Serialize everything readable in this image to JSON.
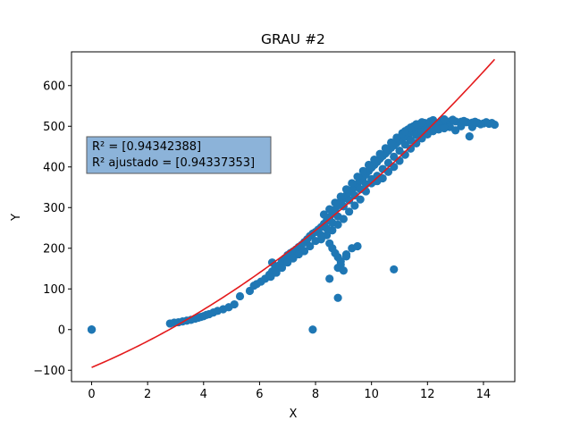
{
  "chart_data": {
    "type": "scatter",
    "title": "GRAU #2",
    "xlabel": "X",
    "ylabel": "Y",
    "xlim": [
      -0.72,
      15.12
    ],
    "ylim": [
      -128,
      683
    ],
    "x_ticks": [
      0,
      2,
      4,
      6,
      8,
      10,
      12,
      14
    ],
    "y_ticks": [
      -100,
      0,
      100,
      200,
      300,
      400,
      500,
      600
    ],
    "grid": false,
    "annotation": {
      "lines": [
        "R² = [0.94342388]",
        "R² ajustado = [0.94337353]"
      ]
    },
    "colors": {
      "scatter": "#1f77b4",
      "fit_line": "#e41a1c",
      "annotation_bg": "#8cb3d9"
    },
    "series": [
      {
        "type": "scatter",
        "points": [
          [
            0,
            0
          ],
          [
            0,
            0
          ],
          [
            0,
            0
          ],
          [
            2.8,
            15
          ],
          [
            2.95,
            17
          ],
          [
            3.1,
            18
          ],
          [
            3.25,
            20
          ],
          [
            3.4,
            22
          ],
          [
            3.55,
            24
          ],
          [
            3.7,
            27
          ],
          [
            3.8,
            29
          ],
          [
            3.9,
            31
          ],
          [
            4.0,
            33
          ],
          [
            4.1,
            36
          ],
          [
            4.2,
            38
          ],
          [
            4.35,
            42
          ],
          [
            4.5,
            46
          ],
          [
            4.7,
            50
          ],
          [
            4.9,
            55
          ],
          [
            5.1,
            62
          ],
          [
            5.3,
            82
          ],
          [
            5.65,
            95
          ],
          [
            5.8,
            108
          ],
          [
            5.9,
            112
          ],
          [
            6.05,
            118
          ],
          [
            6.2,
            125
          ],
          [
            6.35,
            135
          ],
          [
            6.45,
            143
          ],
          [
            6.45,
            165
          ],
          [
            6.55,
            150
          ],
          [
            6.7,
            158
          ],
          [
            6.8,
            168
          ],
          [
            6.9,
            175
          ],
          [
            7.0,
            183
          ],
          [
            7.1,
            188
          ],
          [
            7.2,
            192
          ],
          [
            7.3,
            197
          ],
          [
            7.4,
            203
          ],
          [
            7.5,
            208
          ],
          [
            7.6,
            215
          ],
          [
            7.7,
            222
          ],
          [
            7.8,
            230
          ],
          [
            7.9,
            236
          ],
          [
            8.0,
            240
          ],
          [
            8.1,
            246
          ],
          [
            8.2,
            252
          ],
          [
            8.3,
            260
          ],
          [
            8.4,
            268
          ],
          [
            8.5,
            276
          ],
          [
            8.6,
            285
          ],
          [
            8.7,
            295
          ],
          [
            8.8,
            305
          ],
          [
            8.9,
            315
          ],
          [
            9.0,
            322
          ],
          [
            9.1,
            330
          ],
          [
            9.2,
            337
          ],
          [
            9.3,
            343
          ],
          [
            9.4,
            350
          ],
          [
            9.5,
            358
          ],
          [
            9.6,
            366
          ],
          [
            9.7,
            374
          ],
          [
            9.8,
            382
          ],
          [
            9.9,
            390
          ],
          [
            10.0,
            398
          ],
          [
            10.1,
            405
          ],
          [
            10.2,
            412
          ],
          [
            10.3,
            420
          ],
          [
            10.4,
            427
          ],
          [
            10.5,
            433
          ],
          [
            10.6,
            440
          ],
          [
            10.7,
            447
          ],
          [
            10.8,
            453
          ],
          [
            10.9,
            459
          ],
          [
            11.0,
            465
          ],
          [
            11.1,
            470
          ],
          [
            11.2,
            475
          ],
          [
            11.3,
            480
          ],
          [
            11.4,
            484
          ],
          [
            11.5,
            488
          ],
          [
            11.6,
            491
          ],
          [
            11.7,
            494
          ],
          [
            11.8,
            497
          ],
          [
            11.9,
            500
          ],
          [
            12.0,
            502
          ],
          [
            12.2,
            505
          ],
          [
            12.4,
            508
          ],
          [
            12.6,
            510
          ],
          [
            12.8,
            512
          ],
          [
            13.0,
            512
          ],
          [
            13.2,
            511
          ],
          [
            13.4,
            510
          ],
          [
            13.6,
            509
          ],
          [
            13.8,
            508
          ],
          [
            14.0,
            507
          ],
          [
            14.2,
            506
          ],
          [
            14.4,
            504
          ],
          [
            8.2,
            222
          ],
          [
            8.4,
            232
          ],
          [
            8.6,
            244
          ],
          [
            8.8,
            258
          ],
          [
            9.0,
            272
          ],
          [
            9.2,
            290
          ],
          [
            9.4,
            305
          ],
          [
            9.6,
            320
          ],
          [
            9.8,
            340
          ],
          [
            10.0,
            360
          ],
          [
            10.2,
            378
          ],
          [
            10.4,
            395
          ],
          [
            10.6,
            410
          ],
          [
            10.8,
            425
          ],
          [
            11.0,
            440
          ],
          [
            11.2,
            455
          ],
          [
            11.4,
            465
          ],
          [
            11.6,
            478
          ],
          [
            11.8,
            486
          ],
          [
            12.0,
            490
          ],
          [
            12.4,
            495
          ],
          [
            12.8,
            498
          ],
          [
            13.2,
            500
          ],
          [
            13.6,
            498
          ],
          [
            8.3,
            283
          ],
          [
            8.5,
            296
          ],
          [
            8.7,
            312
          ],
          [
            8.9,
            327
          ],
          [
            9.1,
            345
          ],
          [
            9.3,
            360
          ],
          [
            9.5,
            376
          ],
          [
            9.7,
            390
          ],
          [
            9.9,
            405
          ],
          [
            10.1,
            418
          ],
          [
            10.3,
            432
          ],
          [
            10.5,
            446
          ],
          [
            10.7,
            460
          ],
          [
            10.9,
            472
          ],
          [
            11.1,
            483
          ],
          [
            11.3,
            492
          ],
          [
            11.5,
            500
          ],
          [
            11.7,
            505
          ],
          [
            11.9,
            508
          ],
          [
            12.1,
            512
          ],
          [
            12.5,
            514
          ],
          [
            12.9,
            516
          ],
          [
            13.3,
            513
          ],
          [
            13.7,
            511
          ],
          [
            14.1,
            510
          ],
          [
            7.6,
            193
          ],
          [
            7.8,
            205
          ],
          [
            8.0,
            218
          ],
          [
            8.2,
            232
          ],
          [
            8.4,
            249
          ],
          [
            8.6,
            263
          ],
          [
            8.8,
            278
          ],
          [
            7.4,
            185
          ],
          [
            7.2,
            175
          ],
          [
            7.0,
            165
          ],
          [
            6.8,
            152
          ],
          [
            6.6,
            140
          ],
          [
            6.4,
            130
          ],
          [
            8.5,
            212
          ],
          [
            8.6,
            200
          ],
          [
            8.7,
            188
          ],
          [
            8.8,
            178
          ],
          [
            8.9,
            168
          ],
          [
            8.8,
            152
          ],
          [
            9.1,
            185
          ],
          [
            9.3,
            200
          ],
          [
            9.5,
            205
          ],
          [
            9.1,
            180
          ],
          [
            8.9,
            160
          ],
          [
            8.5,
            125
          ],
          [
            8.8,
            78
          ],
          [
            9.0,
            145
          ],
          [
            7.9,
            0
          ],
          [
            10.8,
            148
          ],
          [
            10.2,
            365
          ],
          [
            10.4,
            372
          ],
          [
            10.6,
            388
          ],
          [
            10.8,
            400
          ],
          [
            11.0,
            415
          ],
          [
            11.2,
            430
          ],
          [
            11.4,
            445
          ],
          [
            11.6,
            458
          ],
          [
            11.8,
            470
          ],
          [
            12.0,
            480
          ],
          [
            12.2,
            488
          ],
          [
            12.4,
            492
          ],
          [
            12.6,
            495
          ],
          [
            13.0,
            490
          ],
          [
            13.5,
            475
          ],
          [
            13.9,
            505
          ],
          [
            14.3,
            508
          ],
          [
            9.4,
            330
          ],
          [
            9.6,
            345
          ],
          [
            9.8,
            358
          ],
          [
            10.0,
            370
          ],
          [
            9.2,
            318
          ],
          [
            9.0,
            303
          ],
          [
            11.2,
            488
          ],
          [
            11.4,
            497
          ],
          [
            11.6,
            505
          ],
          [
            11.8,
            510
          ],
          [
            12.2,
            515
          ],
          [
            12.6,
            517
          ]
        ]
      },
      {
        "type": "line",
        "name": "fit",
        "coef": [
          -93.1,
          29.0,
          1.64
        ],
        "x_range": [
          0,
          14.4
        ]
      }
    ]
  }
}
